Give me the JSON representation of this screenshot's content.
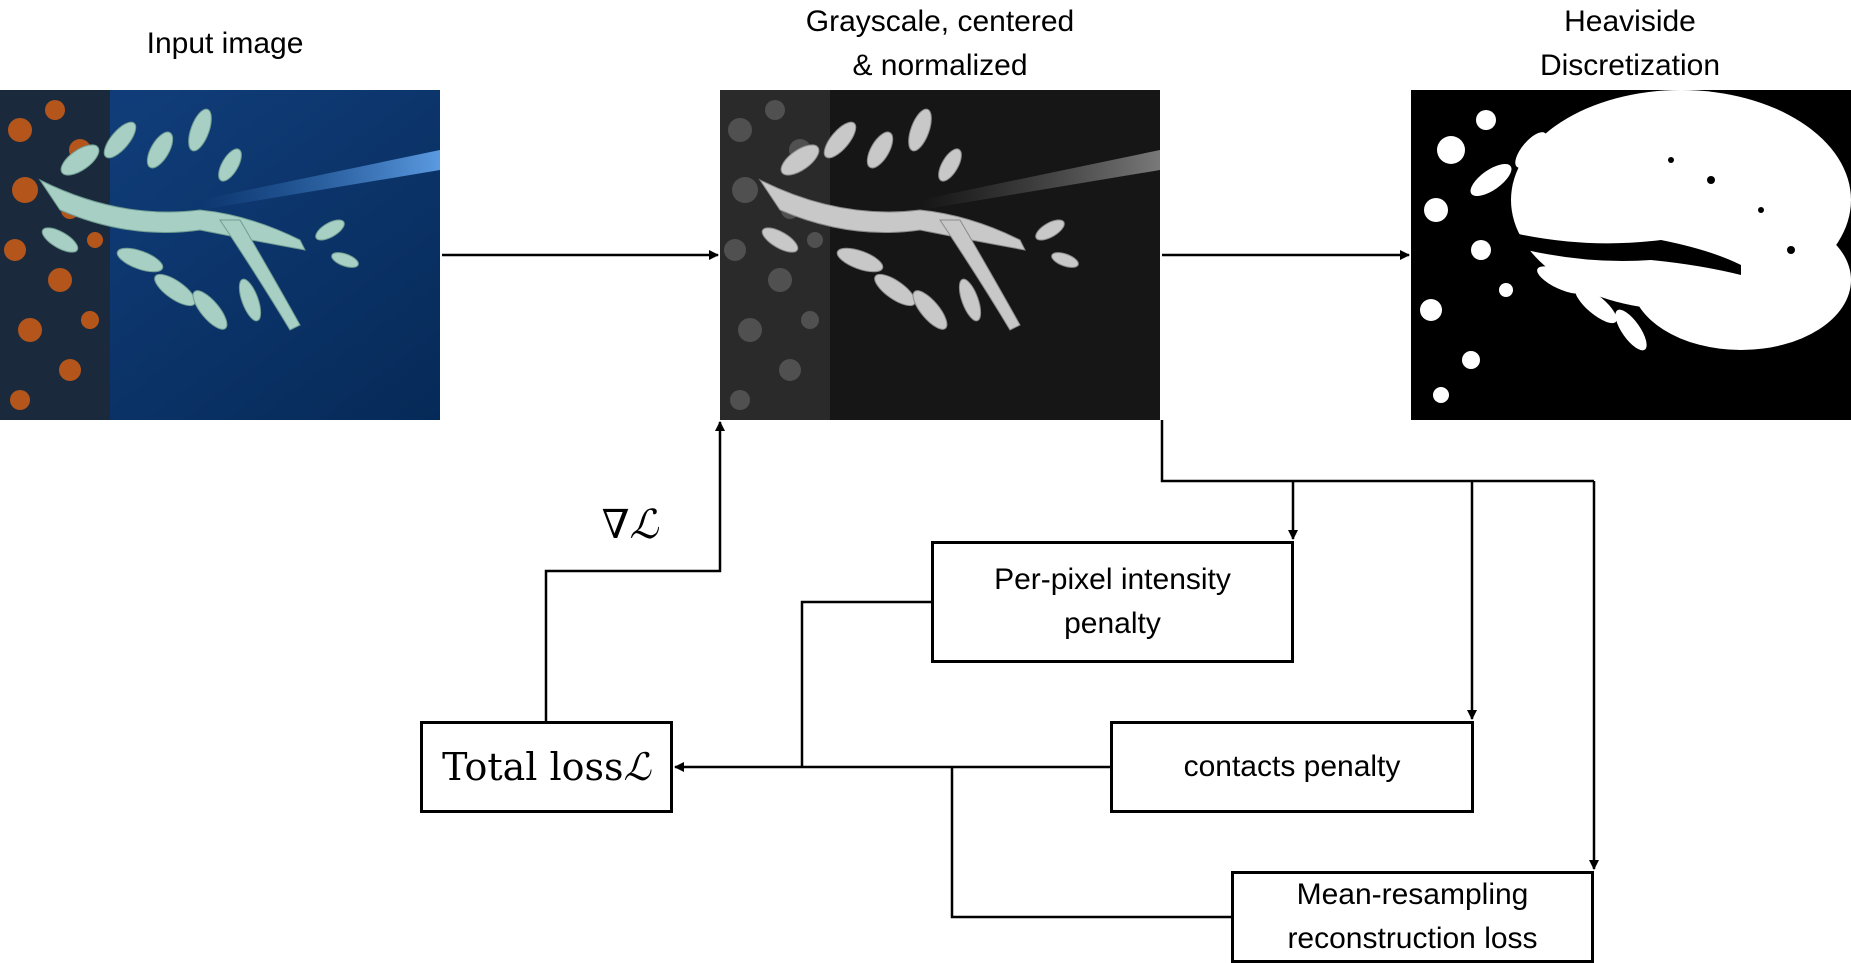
{
  "captions": {
    "input": "Input image",
    "grayscale": "Grayscale, centered\n& normalized",
    "heaviside": "Heaviside\nDiscretization"
  },
  "boxes": {
    "intensity": "Per-pixel intensity\npenalty",
    "contacts": "contacts penalty",
    "reconstruction": "Mean-resampling\nreconstruction loss",
    "total_loss_text": "Total loss",
    "total_loss_symbol": "ℒ"
  },
  "gradient_label": "∇ℒ",
  "colors": {
    "stroke": "#000000",
    "ocean": "#0b3a78",
    "kelp": "#b4561c",
    "fish": "#9fc2b8",
    "gray_bg": "#161616",
    "binary_white": "#ffffff",
    "binary_black": "#000000"
  }
}
